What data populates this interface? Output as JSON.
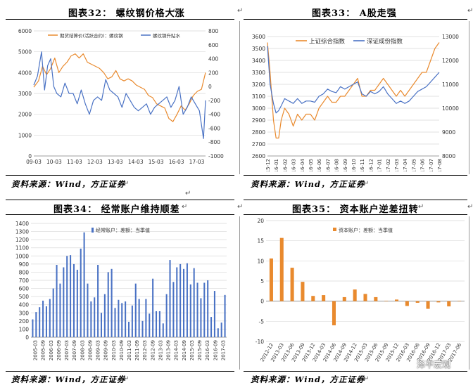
{
  "captions": {
    "c32": "图表32：   螺纹钢价格大涨",
    "c33": "图表33：   A股走强",
    "c34": "图表34：   经常账户维持顺差",
    "c35": "图表35：   资本账户逆差扭转"
  },
  "source_text": "资料来源：Wind，方正证券",
  "para_mark": "↵",
  "watermark": "泽平宏观",
  "colors": {
    "orange": "#E98A2E",
    "blue": "#4A72C4",
    "grid": "#d9d9d9"
  },
  "chart_data": [
    {
      "id": "c32",
      "type": "line",
      "legend_placement": "top",
      "x_ticks": [
        "09-03",
        "10-03",
        "11-03",
        "12-03",
        "13-03",
        "14-03",
        "15-03",
        "16-03",
        "17-03"
      ],
      "y_left": {
        "ticks": [
          "0",
          "1000",
          "2000",
          "3000",
          "4000",
          "5000",
          "6000"
        ],
        "range": [
          0,
          6000
        ]
      },
      "y_right": {
        "ticks": [
          "-1000",
          "-800",
          "-600",
          "-400",
          "-200",
          "0",
          "200",
          "400",
          "600",
          "800"
        ],
        "range": [
          -1000,
          800
        ]
      },
      "series": [
        {
          "name": "期货结算价(活跃合约)：螺纹钢",
          "axis": "left",
          "color": "#E98A2E",
          "x": [
            2009.17,
            2009.4,
            2009.6,
            2009.8,
            2010.0,
            2010.2,
            2010.4,
            2010.6,
            2010.8,
            2011.0,
            2011.2,
            2011.4,
            2011.6,
            2011.8,
            2012.0,
            2012.2,
            2012.4,
            2012.6,
            2012.8,
            2013.0,
            2013.2,
            2013.4,
            2013.6,
            2013.8,
            2014.0,
            2014.2,
            2014.4,
            2014.6,
            2014.8,
            2015.0,
            2015.2,
            2015.4,
            2015.6,
            2015.8,
            2016.0,
            2016.2,
            2016.4,
            2016.6,
            2016.8,
            2017.0,
            2017.2,
            2017.4,
            2017.6
          ],
          "y": [
            3300,
            3600,
            4300,
            3900,
            4200,
            4700,
            4000,
            4300,
            4500,
            4800,
            4900,
            4700,
            4900,
            4500,
            4400,
            4300,
            4200,
            4000,
            3700,
            3800,
            4100,
            3700,
            3600,
            3700,
            3600,
            3400,
            3300,
            3200,
            2900,
            2800,
            2500,
            2400,
            2300,
            1800,
            1650,
            2000,
            2400,
            2200,
            2500,
            2900,
            3100,
            3200,
            4000
          ]
        },
        {
          "name": "螺纹钢升贴水",
          "axis": "right",
          "color": "#4A72C4",
          "x": [
            2009.17,
            2009.35,
            2009.55,
            2009.7,
            2009.85,
            2010.0,
            2010.15,
            2010.3,
            2010.5,
            2010.7,
            2010.9,
            2011.1,
            2011.3,
            2011.5,
            2011.7,
            2011.9,
            2012.1,
            2012.3,
            2012.5,
            2012.7,
            2012.9,
            2013.1,
            2013.3,
            2013.5,
            2013.7,
            2013.9,
            2014.1,
            2014.3,
            2014.5,
            2014.7,
            2014.9,
            2015.1,
            2015.3,
            2015.5,
            2015.7,
            2015.9,
            2016.1,
            2016.3,
            2016.5,
            2016.7,
            2016.9,
            2017.1,
            2017.3,
            2017.5,
            2017.6
          ],
          "y": [
            20,
            150,
            500,
            -50,
            300,
            400,
            0,
            -100,
            -150,
            50,
            -100,
            -100,
            -250,
            -50,
            -250,
            -400,
            -200,
            -150,
            -200,
            100,
            -50,
            -100,
            -150,
            -300,
            -100,
            -200,
            -300,
            -350,
            -300,
            -250,
            -400,
            -300,
            -250,
            -200,
            -150,
            -300,
            -200,
            0,
            -400,
            -300,
            -150,
            -250,
            -350,
            -750,
            -200
          ]
        }
      ]
    },
    {
      "id": "c33",
      "type": "line",
      "legend_placement": "top",
      "x_ticks": [
        "15-12",
        "16-01",
        "16-02",
        "16-03",
        "16-04",
        "16-05",
        "16-06",
        "16-07",
        "16-08",
        "16-09",
        "16-10",
        "16-11",
        "16-12",
        "17-01",
        "17-02",
        "17-03",
        "17-04",
        "17-05",
        "17-06",
        "17-07",
        "17-08"
      ],
      "y_left": {
        "ticks": [
          "2600",
          "2700",
          "2800",
          "2900",
          "3000",
          "3100",
          "3200",
          "3300",
          "3400",
          "3500",
          "3600"
        ],
        "range": [
          2600,
          3600
        ]
      },
      "y_right": {
        "ticks": [
          "8000",
          "9000",
          "10000",
          "11000",
          "12000",
          "13000"
        ],
        "range": [
          8000,
          13000
        ]
      },
      "series": [
        {
          "name": "上证综合指数",
          "axis": "left",
          "color": "#E98A2E",
          "x": [
            0,
            0.3,
            0.7,
            1,
            1.3,
            1.6,
            2,
            2.5,
            3,
            3.5,
            4,
            4.5,
            5,
            5.5,
            6,
            6.5,
            7,
            7.5,
            8,
            8.5,
            9,
            9.5,
            10,
            10.5,
            11,
            11.5,
            12,
            12.5,
            13,
            13.5,
            14,
            14.5,
            15,
            15.5,
            16,
            16.5,
            17,
            17.5,
            18,
            18.5,
            19,
            19.5,
            20
          ],
          "y": [
            3550,
            3300,
            2900,
            2750,
            2750,
            2900,
            3000,
            2950,
            2850,
            2950,
            2900,
            2950,
            2950,
            2900,
            3000,
            3050,
            3100,
            3050,
            3050,
            3100,
            3100,
            3150,
            3200,
            3250,
            3100,
            3100,
            3150,
            3150,
            3200,
            3250,
            3200,
            3150,
            3100,
            3150,
            3100,
            3150,
            3200,
            3250,
            3300,
            3300,
            3400,
            3500,
            3550
          ]
        },
        {
          "name": "深证成份指数",
          "axis": "right",
          "color": "#4A72C4",
          "x": [
            0,
            0.3,
            0.7,
            1,
            1.3,
            1.6,
            2,
            2.5,
            3,
            3.5,
            4,
            4.5,
            5,
            5.5,
            6,
            6.5,
            7,
            7.5,
            8,
            8.5,
            9,
            9.5,
            10,
            10.5,
            11,
            11.5,
            12,
            12.5,
            13,
            13.5,
            14,
            14.5,
            15,
            15.5,
            16,
            16.5,
            17,
            17.5,
            18,
            18.5,
            19,
            19.5,
            20
          ],
          "y": [
            12600,
            11000,
            10200,
            9800,
            9900,
            10100,
            10400,
            10300,
            10200,
            10400,
            10200,
            10300,
            10300,
            10250,
            10500,
            10600,
            10800,
            10700,
            10650,
            10900,
            10800,
            10900,
            11000,
            11100,
            10600,
            10500,
            10700,
            10600,
            10700,
            10900,
            10600,
            10400,
            10200,
            10300,
            10200,
            10300,
            10500,
            10700,
            10800,
            10900,
            11100,
            11300,
            11500
          ]
        }
      ]
    },
    {
      "id": "c34",
      "type": "bar",
      "legend": "经常账户：差额：当季值",
      "legend_placement": "top",
      "x_ticks": [
        "2005-03",
        "2005-09",
        "2006-03",
        "2006-09",
        "2007-03",
        "2007-09",
        "2008-03",
        "2008-09",
        "2009-03",
        "2009-09",
        "2010-03",
        "2010-09",
        "2011-03",
        "2011-09",
        "2012-03",
        "2012-09",
        "2013-03",
        "2013-09",
        "2014-03",
        "2014-09",
        "2015-03",
        "2015-09",
        "2016-03",
        "2016-09",
        "2017-03"
      ],
      "y_ticks": [
        "0",
        "100",
        "200",
        "300",
        "400",
        "500",
        "600",
        "700",
        "800",
        "900",
        "1000",
        "1100",
        "1200",
        "1300",
        "1400"
      ],
      "ylim": [
        0,
        1400
      ],
      "color": "#4A72C4",
      "values": [
        220,
        310,
        370,
        450,
        380,
        470,
        600,
        890,
        660,
        860,
        1000,
        1010,
        900,
        830,
        1090,
        1290,
        660,
        440,
        490,
        890,
        300,
        530,
        800,
        840,
        360,
        460,
        420,
        440,
        190,
        390,
        660,
        470,
        200,
        470,
        290,
        720,
        320,
        320,
        170,
        530,
        950,
        680,
        860,
        900,
        840,
        910,
        650,
        850,
        670,
        480,
        670,
        700,
        250,
        570,
        110,
        180,
        520
      ]
    },
    {
      "id": "c35",
      "type": "bar",
      "legend": "资本账户：差额：当季值",
      "legend_placement": "top",
      "x_ticks": [
        "2012-12",
        "2013-03",
        "2013-06",
        "2013-09",
        "2013-12",
        "2014-03",
        "2014-06",
        "2014-09",
        "2014-12",
        "2015-03",
        "2015-06",
        "2015-09",
        "2015-12",
        "2016-03",
        "2016-06",
        "2016-09",
        "2016-12",
        "2017-03",
        "2017-06"
      ],
      "y_ticks": [
        "-10",
        "-5",
        "0",
        "5",
        "10",
        "15",
        "20"
      ],
      "ylim": [
        -10,
        20
      ],
      "color": "#E98A2E",
      "values": [
        10.6,
        15.7,
        8.3,
        4.8,
        1.3,
        1.5,
        -6.0,
        1.0,
        2.9,
        1.8,
        1.0,
        0.1,
        0.4,
        -1.2,
        -0.4,
        -1.9,
        -0.3,
        -1.3,
        0.1
      ]
    }
  ]
}
